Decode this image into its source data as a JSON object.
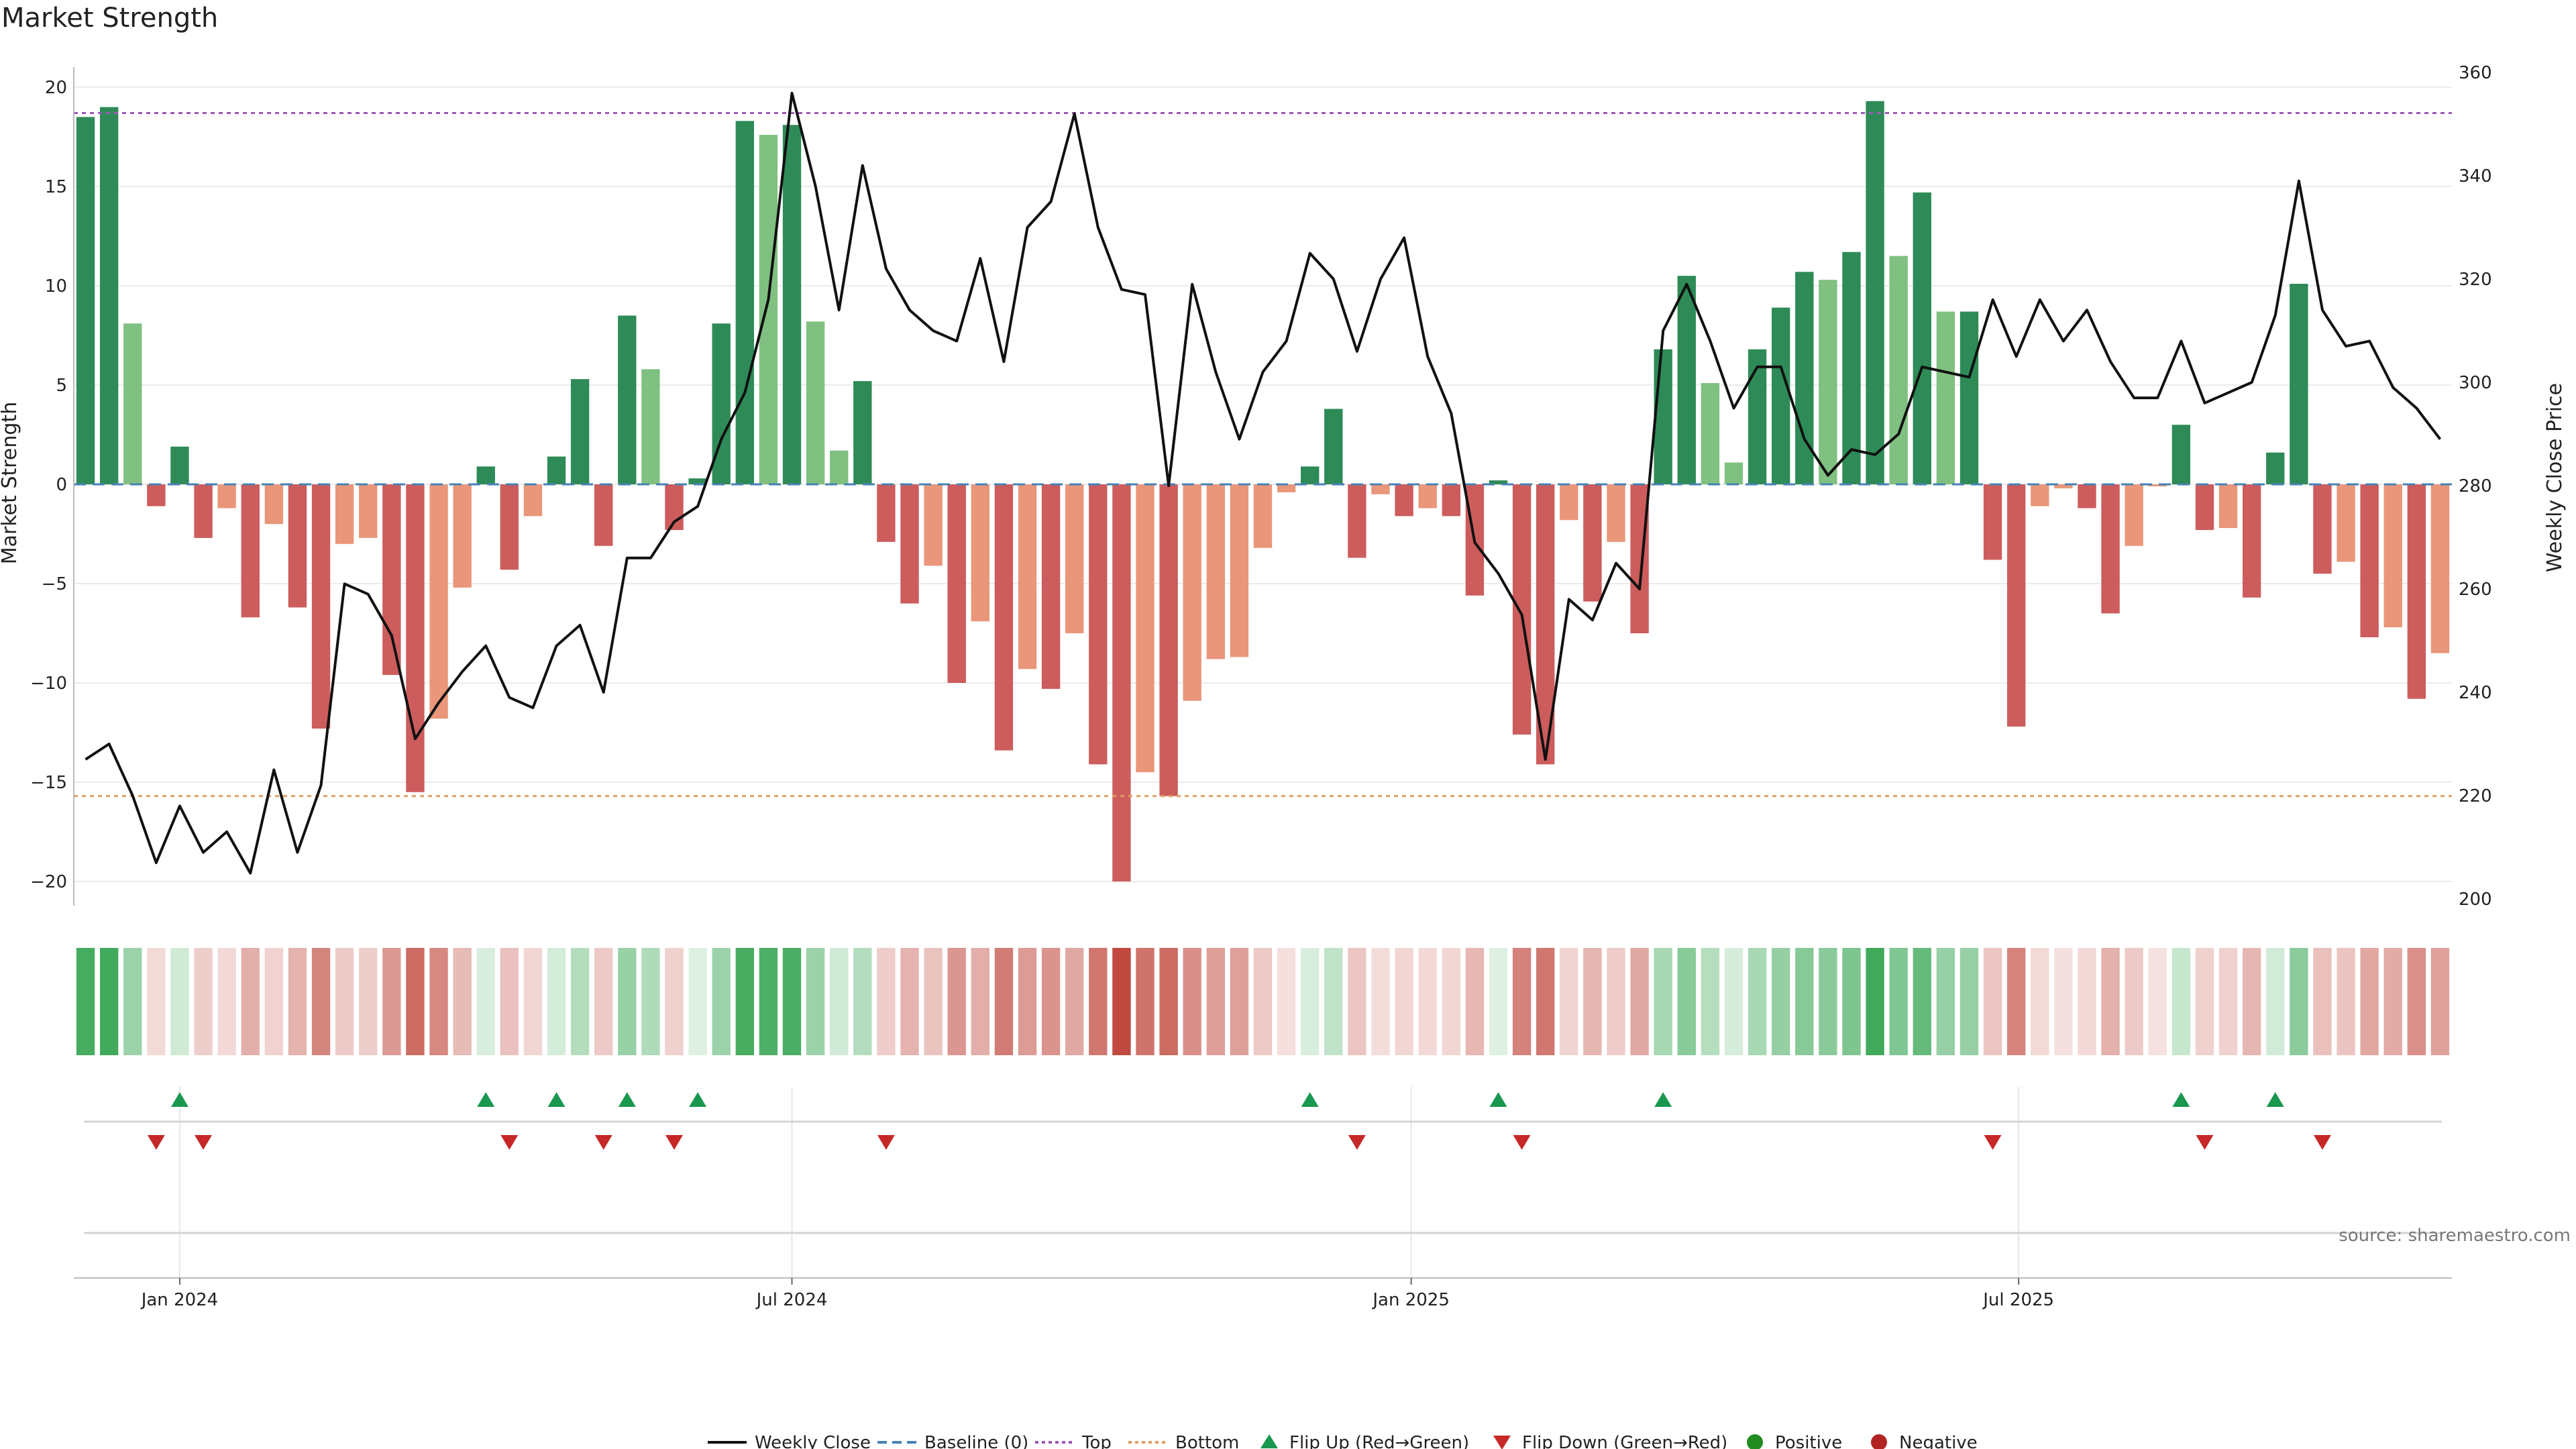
{
  "chart_data": {
    "type": "bar",
    "title": "Market Strength",
    "ylabel_left": "Market Strength",
    "ylabel_right": "Weekly Close Price",
    "ylim_left": [
      -21.5,
      20.8
    ],
    "ylim_right": [
      196,
      363
    ],
    "yticks_left": [
      20,
      15,
      10,
      5,
      0,
      -5,
      -10,
      -15,
      -20
    ],
    "yticks_right": [
      360,
      340,
      320,
      300,
      280,
      260,
      240,
      220,
      200
    ],
    "x_tick_labels": [
      "Jan 2024",
      "Jul 2024",
      "Jan 2025",
      "Jul 2025"
    ],
    "x_tick_index": [
      4,
      30,
      56.3,
      82.1
    ],
    "top_line": 18.7,
    "bottom_line": -15.7,
    "strength": [
      18.5,
      19,
      8.1,
      -1.1,
      1.9,
      -2.7,
      -1.2,
      -6.7,
      -2,
      -6.2,
      -12.3,
      -3,
      -2.7,
      -9.6,
      -15.5,
      -11.8,
      -5.2,
      0.9,
      -4.3,
      -1.6,
      1.4,
      5.3,
      -3.1,
      8.5,
      5.8,
      -2.3,
      0.3,
      8.1,
      18.3,
      17.6,
      18.1,
      8.2,
      1.7,
      5.2,
      -2.9,
      -6,
      -4.1,
      -10,
      -6.9,
      -13.4,
      -9.3,
      -10.3,
      -7.5,
      -14.1,
      -20,
      -14.5,
      -15.7,
      -10.9,
      -8.8,
      -8.7,
      -3.2,
      -0.4,
      0.9,
      3.8,
      -3.7,
      -0.5,
      -1.6,
      -1.2,
      -1.6,
      -5.6,
      0.2,
      -12.6,
      -14.1,
      -1.8,
      -5.9,
      -2.9,
      -7.5,
      6.8,
      10.5,
      5.1,
      1.1,
      6.8,
      8.9,
      10.7,
      10.3,
      11.7,
      19.3,
      11.5,
      14.7,
      8.7,
      8.7,
      -3.8,
      -12.2,
      -1.1,
      -0.2,
      -1.2,
      -6.5,
      -3.1,
      -0.1,
      3,
      -2.3,
      -2.2,
      -5.7,
      1.6,
      10.1,
      -4.5,
      -3.9,
      -7.7,
      -7.2,
      -10.8,
      -8.5
    ],
    "weekly_close": [
      227,
      230,
      220,
      207,
      218,
      209,
      213,
      205,
      225,
      209,
      222,
      261,
      259,
      251,
      231,
      238,
      244,
      249,
      239,
      237,
      249,
      253,
      240,
      266,
      266,
      273,
      276,
      289,
      298,
      316,
      356,
      338,
      314,
      342,
      322,
      314,
      310,
      308,
      324,
      304,
      330,
      335,
      352,
      330,
      318,
      317,
      280,
      319,
      302,
      289,
      302,
      308,
      325,
      320,
      306,
      320,
      328,
      305,
      294,
      269,
      263,
      255,
      227,
      258,
      254,
      265,
      260,
      310,
      319,
      308,
      295,
      303,
      303,
      289,
      282,
      287,
      286,
      290,
      303,
      302,
      301,
      316,
      305,
      316,
      308,
      314,
      304,
      297,
      297,
      308,
      296,
      298,
      300,
      313,
      339,
      314,
      307,
      308,
      299,
      295,
      289
    ],
    "flip_up": [
      4,
      17,
      20,
      23,
      26,
      52,
      60,
      67,
      89,
      93
    ],
    "flip_down": [
      3,
      5,
      18,
      22,
      25,
      34,
      54,
      61,
      81,
      90,
      95
    ],
    "legend": [
      "Weekly Close",
      "Baseline (0)",
      "Top",
      "Bottom",
      "Flip Up (Red→Green)",
      "Flip Down (Green→Red)",
      "Positive",
      "Negative"
    ],
    "source": "source: sharemaestro.com"
  },
  "colors": {
    "pos_strong": "#2e8b57",
    "pos_light": "#80c080",
    "neg_strong": "#cd5c5c",
    "neg_light": "#e9967a",
    "price_line": "#111111",
    "baseline": "#4682b4",
    "top": "#9b59b6",
    "bottom": "#e0a060",
    "flip_up": "#1a9850",
    "flip_down": "#c62828",
    "positive_dot": "#228b22",
    "negative_dot": "#b22222"
  }
}
